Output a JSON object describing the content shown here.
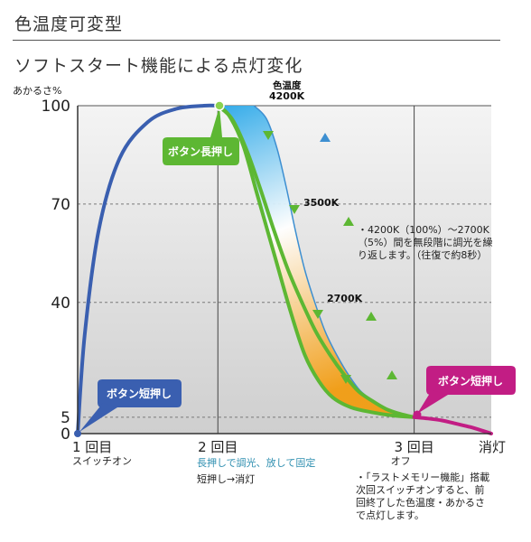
{
  "header": {
    "title": "色温度可変型",
    "subtitle": "ソフトスタート機能による点灯変化"
  },
  "chart_data": {
    "type": "line",
    "ylabel": "あかるさ%",
    "yticks": [
      {
        "value": 100,
        "label": "100"
      },
      {
        "value": 70,
        "label": "70"
      },
      {
        "value": 40,
        "label": "40"
      },
      {
        "value": 5,
        "label": "5"
      },
      {
        "value": 0,
        "label": "0"
      }
    ],
    "ylim": [
      0,
      100
    ],
    "xticks": [
      {
        "value": 0,
        "label": "1 回目",
        "sub": "スイッチオン"
      },
      {
        "value": 1,
        "label": "2 回目",
        "sub": "長押しで調光、放して固定"
      },
      {
        "value": 2.4,
        "label": "3 回目",
        "sub": "オフ"
      },
      {
        "value": 2.95,
        "label": "消灯"
      }
    ],
    "xlim": [
      0,
      2.95
    ],
    "series": [
      {
        "x": [
          0,
          0.05,
          0.15,
          0.3,
          0.5,
          0.7,
          0.9,
          1.0
        ],
        "values": [
          0,
          30,
          62,
          84,
          95,
          99,
          100,
          100
        ]
      },
      {
        "x": [
          1.0,
          1.08,
          1.18,
          1.28,
          1.4,
          1.52,
          1.62,
          1.72,
          1.82,
          1.95,
          2.1,
          2.25,
          2.4
        ],
        "values": [
          100,
          97,
          88,
          73,
          55,
          37,
          24,
          16,
          11,
          8,
          6.5,
          5.5,
          5
        ]
      },
      {
        "x": [
          1.0,
          1.1,
          1.2,
          1.3,
          1.4,
          1.5,
          1.6,
          1.7,
          1.8,
          1.9,
          2.0,
          2.1,
          2.2,
          2.3,
          2.4
        ],
        "values": [
          100,
          96,
          87,
          75,
          62,
          50,
          40,
          31,
          24,
          18,
          13,
          10,
          7.5,
          6,
          5
        ]
      },
      {
        "x": [
          2.4,
          2.5,
          2.6,
          2.7,
          2.8,
          2.9,
          2.95
        ],
        "values": [
          5,
          4.6,
          4,
          3,
          2,
          0.7,
          0
        ]
      }
    ],
    "color_temp_labels": [
      "色温度",
      "4200K",
      "3500K",
      "2700K"
    ],
    "callouts": [
      "ボタン長押し",
      "ボタン短押し",
      "ボタン短押し"
    ],
    "notes": {
      "dimming": [
        "・4200K（100%）～2700K",
        "（5%）間を無段階に調光を繰",
        "り返します。（往復で約8秒）"
      ],
      "short_press": "短押し→消灯",
      "memory": [
        "・「ラストメモリー機能」搭載",
        "次回スイッチオンすると、前",
        "回終了した色温度・あかるさ",
        "で点灯します。"
      ]
    },
    "colors": {
      "blue_curve": "#3a5fb0",
      "green_curve": "#5db733",
      "magenta_curve": "#c21d84",
      "blue_band": "#3d8fd1",
      "cool_fill": "#2fa8e6",
      "warm_fill": "#f29c11"
    },
    "grid": true
  }
}
